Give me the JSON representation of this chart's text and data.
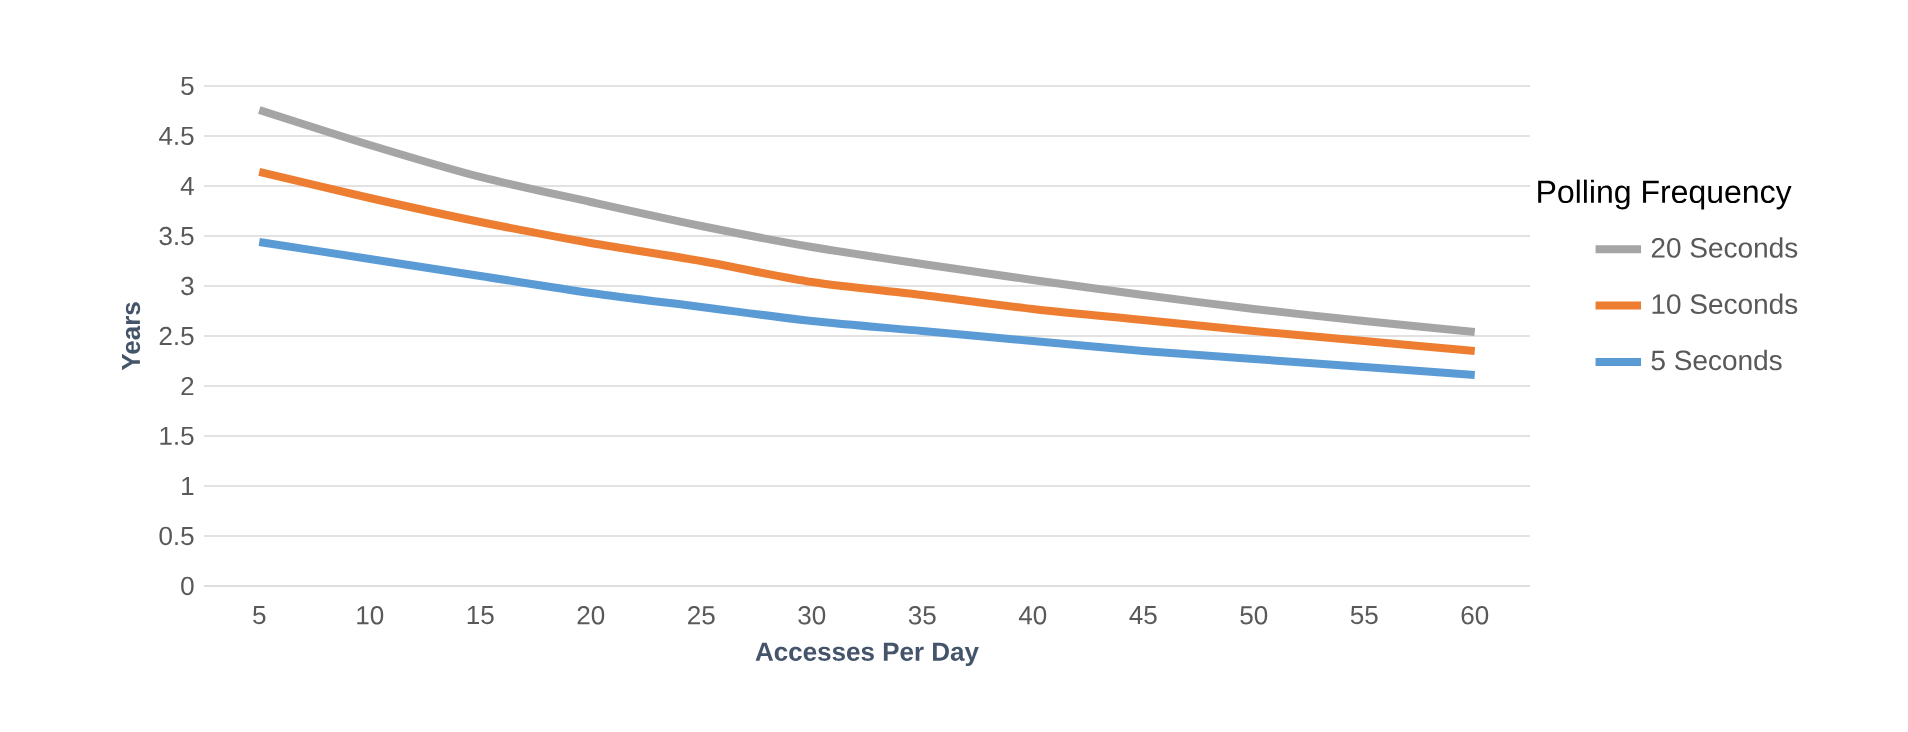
{
  "chart_data": {
    "type": "line",
    "xlabel": "Accesses Per Day",
    "ylabel": "Years",
    "legend_title": "Polling Frequency",
    "categories": [
      "5",
      "10",
      "15",
      "20",
      "25",
      "30",
      "35",
      "40",
      "45",
      "50",
      "55",
      "60"
    ],
    "series": [
      {
        "name": "20 Seconds",
        "color": "#a5a5a5",
        "values": [
          4.76,
          4.41,
          4.09,
          3.84,
          3.6,
          3.39,
          3.22,
          3.06,
          2.91,
          2.77,
          2.65,
          2.54
        ]
      },
      {
        "name": "10 Seconds",
        "color": "#ed7d31",
        "values": [
          4.14,
          3.88,
          3.64,
          3.43,
          3.25,
          3.04,
          2.91,
          2.77,
          2.66,
          2.55,
          2.45,
          2.35
        ]
      },
      {
        "name": "5 Seconds",
        "color": "#5b9bd5",
        "values": [
          3.44,
          3.27,
          3.1,
          2.93,
          2.79,
          2.65,
          2.55,
          2.45,
          2.35,
          2.27,
          2.19,
          2.11
        ]
      }
    ],
    "ylim": [
      0,
      5
    ],
    "yticks": [
      0,
      0.5,
      1,
      1.5,
      2,
      2.5,
      3,
      3.5,
      4,
      4.5,
      5
    ],
    "grid": "y",
    "legend": "right"
  }
}
